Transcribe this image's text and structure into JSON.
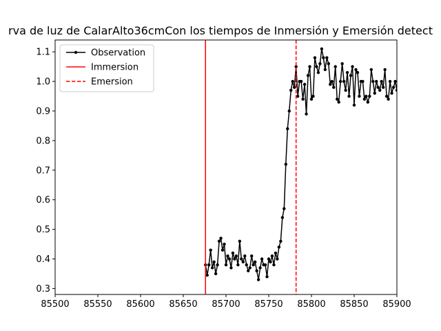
{
  "chart_data": {
    "type": "line",
    "title": "rva de luz de CalarAlto36cmCon los tiempos de Inmersión y Emersión detect",
    "xlabel": "",
    "ylabel": "",
    "xlim": [
      85500,
      85900
    ],
    "ylim": [
      0.28,
      1.14
    ],
    "x_ticks": [
      85500,
      85550,
      85600,
      85650,
      85700,
      85750,
      85800,
      85850,
      85900
    ],
    "y_ticks": [
      0.3,
      0.4,
      0.5,
      0.6,
      0.7,
      0.8,
      0.9,
      1.0,
      1.1
    ],
    "x_tick_labels": [
      "85500",
      "85550",
      "85600",
      "85650",
      "85700",
      "85750",
      "85800",
      "85850",
      "85900"
    ],
    "y_tick_labels": [
      "0.3",
      "0.4",
      "0.5",
      "0.6",
      "0.7",
      "0.8",
      "0.9",
      "1.0",
      "1.1"
    ],
    "grid": false,
    "legend_position": "top-left",
    "series": [
      {
        "name": "Observation",
        "color": "#000000",
        "marker": "circle",
        "x": [
          85676,
          85678,
          85680,
          85682,
          85684,
          85686,
          85688,
          85690,
          85692,
          85694,
          85696,
          85698,
          85700,
          85702,
          85704,
          85706,
          85708,
          85710,
          85712,
          85714,
          85716,
          85718,
          85720,
          85722,
          85724,
          85726,
          85728,
          85730,
          85732,
          85734,
          85736,
          85738,
          85740,
          85742,
          85744,
          85746,
          85748,
          85750,
          85752,
          85754,
          85756,
          85758,
          85760,
          85762,
          85764,
          85766,
          85768,
          85770,
          85772,
          85774,
          85776,
          85778,
          85780,
          85782,
          85784,
          85786,
          85788,
          85790,
          85792,
          85794,
          85796,
          85798,
          85800,
          85802,
          85804,
          85806,
          85808,
          85810,
          85812,
          85814,
          85816,
          85818,
          85820,
          85822,
          85824,
          85826,
          85828,
          85830,
          85832,
          85834,
          85836,
          85838,
          85840,
          85842,
          85844,
          85846,
          85848,
          85850,
          85852,
          85854,
          85856,
          85858,
          85860,
          85862,
          85864,
          85866,
          85868,
          85870,
          85872,
          85874,
          85876,
          85878,
          85880,
          85882,
          85884,
          85886,
          85888,
          85890,
          85892,
          85894,
          85896,
          85898,
          85900
        ],
        "y": [
          0.38,
          0.345,
          0.38,
          0.43,
          0.37,
          0.39,
          0.35,
          0.38,
          0.46,
          0.47,
          0.43,
          0.45,
          0.38,
          0.41,
          0.4,
          0.37,
          0.42,
          0.4,
          0.41,
          0.38,
          0.46,
          0.4,
          0.39,
          0.41,
          0.38,
          0.36,
          0.37,
          0.41,
          0.38,
          0.39,
          0.36,
          0.33,
          0.37,
          0.4,
          0.38,
          0.38,
          0.34,
          0.4,
          0.39,
          0.41,
          0.38,
          0.42,
          0.4,
          0.44,
          0.46,
          0.54,
          0.57,
          0.72,
          0.84,
          0.9,
          0.97,
          1.0,
          0.98,
          1.05,
          0.95,
          1.0,
          1.0,
          0.94,
          0.99,
          0.89,
          1.02,
          1.05,
          0.94,
          0.95,
          1.08,
          1.05,
          1.03,
          1.06,
          1.11,
          1.08,
          1.04,
          1.08,
          1.06,
          0.99,
          1.0,
          0.98,
          1.05,
          0.94,
          0.93,
          1.0,
          1.06,
          1.0,
          0.97,
          1.03,
          0.95,
          1.02,
          1.05,
          0.92,
          1.04,
          1.03,
          0.95,
          1.0,
          1.0,
          0.94,
          0.95,
          0.93,
          0.95,
          1.04,
          1.0,
          0.96,
          1.0,
          0.98,
          0.97,
          1.0,
          0.98,
          1.04,
          0.95,
          0.94,
          1.0,
          0.96,
          0.98,
          1.0,
          0.97
        ]
      }
    ],
    "vlines": [
      {
        "name": "Immersion",
        "x": 85676,
        "color": "#ff0000",
        "style": "solid"
      },
      {
        "name": "Emersion",
        "x": 85782,
        "color": "#ff0000",
        "style": "dashed"
      }
    ]
  }
}
